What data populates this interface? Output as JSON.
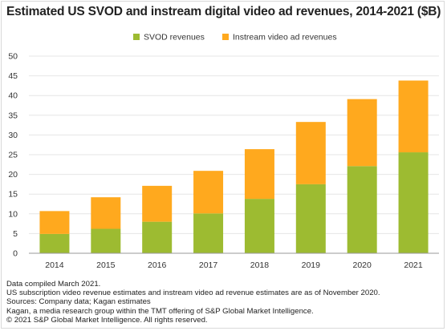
{
  "chart_data": {
    "type": "bar",
    "stacked": true,
    "title": "Estimated US SVOD and instream digital video ad revenues, 2014-2021 ($B)",
    "categories": [
      "2014",
      "2015",
      "2016",
      "2017",
      "2018",
      "2019",
      "2020",
      "2021"
    ],
    "series": [
      {
        "name": "SVOD revenues",
        "color": "#9dbb31",
        "values": [
          4.9,
          6.2,
          8.0,
          10.1,
          13.8,
          17.5,
          22.1,
          25.6
        ]
      },
      {
        "name": "Instream video ad revenues",
        "color": "#ffa91e",
        "values": [
          5.8,
          8.0,
          9.1,
          10.8,
          12.6,
          15.8,
          17.0,
          18.2
        ]
      }
    ],
    "ylim": [
      0,
      50
    ],
    "yticks": [
      0,
      5,
      10,
      15,
      20,
      25,
      30,
      35,
      40,
      45,
      50
    ],
    "xlabel": "",
    "ylabel": "",
    "grid": true,
    "legend_position": "top-center"
  },
  "notes": [
    "Data compiled March 2021.",
    "US subscription video revenue estimates and instream video ad revenue estimates are as of November 2020.",
    "Sources: Company data; Kagan estimates",
    "Kagan, a media research group within the TMT offering of S&P Global Market Intelligence.",
    "© 2021 S&P Global Market Intelligence. All rights reserved."
  ]
}
